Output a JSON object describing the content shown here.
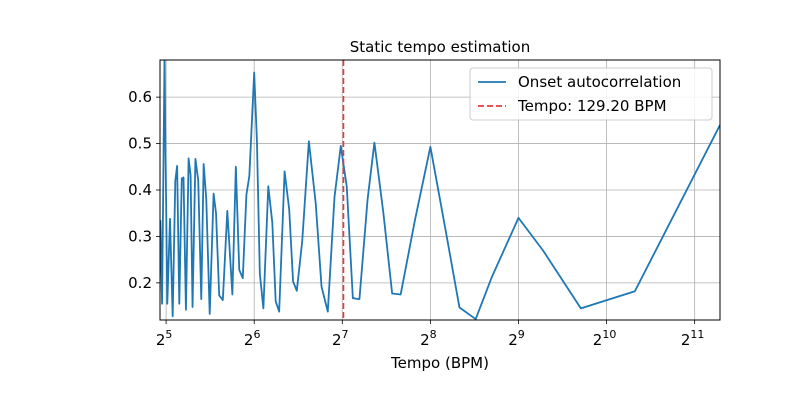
{
  "chart_data": {
    "type": "line",
    "title": "Static tempo estimation",
    "xlabel": "Tempo (BPM)",
    "ylabel": "",
    "x_scale": "log2",
    "xlim": [
      30.5,
      2500
    ],
    "ylim": [
      0.12,
      0.68
    ],
    "grid": true,
    "legend_position": "top-right",
    "x_ticks": [
      {
        "value": 32,
        "base": "2",
        "exp": "5"
      },
      {
        "value": 64,
        "base": "2",
        "exp": "6"
      },
      {
        "value": 128,
        "base": "2",
        "exp": "7"
      },
      {
        "value": 256,
        "base": "2",
        "exp": "8"
      },
      {
        "value": 512,
        "base": "2",
        "exp": "9"
      },
      {
        "value": 1024,
        "base": "2",
        "exp": "10"
      },
      {
        "value": 2048,
        "base": "2",
        "exp": "11"
      }
    ],
    "y_ticks": [
      {
        "value": 0.2,
        "label": "0.2"
      },
      {
        "value": 0.3,
        "label": "0.3"
      },
      {
        "value": 0.4,
        "label": "0.4"
      },
      {
        "value": 0.5,
        "label": "0.5"
      },
      {
        "value": 0.6,
        "label": "0.6"
      }
    ],
    "series": [
      {
        "name": "Onset autocorrelation",
        "color": "#1f77b4",
        "style": "solid",
        "points": [
          [
            30.6,
            0.335
          ],
          [
            31.0,
            0.155
          ],
          [
            31.6,
            0.68
          ],
          [
            32.3,
            0.155
          ],
          [
            33.0,
            0.338
          ],
          [
            33.7,
            0.128
          ],
          [
            34.4,
            0.42
          ],
          [
            34.9,
            0.452
          ],
          [
            35.5,
            0.155
          ],
          [
            36.2,
            0.425
          ],
          [
            36.7,
            0.427
          ],
          [
            37.4,
            0.142
          ],
          [
            38.2,
            0.468
          ],
          [
            38.8,
            0.432
          ],
          [
            39.4,
            0.148
          ],
          [
            40.3,
            0.467
          ],
          [
            41.2,
            0.421
          ],
          [
            42.2,
            0.165
          ],
          [
            43.0,
            0.456
          ],
          [
            43.9,
            0.38
          ],
          [
            45.1,
            0.133
          ],
          [
            46.5,
            0.392
          ],
          [
            47.4,
            0.35
          ],
          [
            48.6,
            0.173
          ],
          [
            50.0,
            0.163
          ],
          [
            51.8,
            0.355
          ],
          [
            53.9,
            0.175
          ],
          [
            55.4,
            0.45
          ],
          [
            56.9,
            0.228
          ],
          [
            58.5,
            0.21
          ],
          [
            60.2,
            0.39
          ],
          [
            61.6,
            0.43
          ],
          [
            64.0,
            0.653
          ],
          [
            65.4,
            0.505
          ],
          [
            66.9,
            0.22
          ],
          [
            68.8,
            0.145
          ],
          [
            71.5,
            0.408
          ],
          [
            73.8,
            0.33
          ],
          [
            75.8,
            0.16
          ],
          [
            77.9,
            0.138
          ],
          [
            81.3,
            0.44
          ],
          [
            84.3,
            0.358
          ],
          [
            86.9,
            0.203
          ],
          [
            89.5,
            0.183
          ],
          [
            93.4,
            0.29
          ],
          [
            98.4,
            0.505
          ],
          [
            103.9,
            0.37
          ],
          [
            108.7,
            0.192
          ],
          [
            114.2,
            0.138
          ],
          [
            120.4,
            0.385
          ],
          [
            126.5,
            0.495
          ],
          [
            132.6,
            0.407
          ],
          [
            139.1,
            0.167
          ],
          [
            146.5,
            0.165
          ],
          [
            156.2,
            0.38
          ],
          [
            164.8,
            0.502
          ],
          [
            176.9,
            0.35
          ],
          [
            189.5,
            0.177
          ],
          [
            202.6,
            0.175
          ],
          [
            226.7,
            0.335
          ],
          [
            256.0,
            0.493
          ],
          [
            289.8,
            0.307
          ],
          [
            321.8,
            0.147
          ],
          [
            365.6,
            0.122
          ],
          [
            414.9,
            0.212
          ],
          [
            512.0,
            0.34
          ],
          [
            620.8,
            0.27
          ],
          [
            836.6,
            0.145
          ],
          [
            1279.6,
            0.182
          ],
          [
            2500.0,
            0.54
          ]
        ]
      },
      {
        "name": "Tempo: 129.20 BPM",
        "color": "#e8393a",
        "style": "dashed",
        "vertical_x": 129.2
      }
    ]
  }
}
